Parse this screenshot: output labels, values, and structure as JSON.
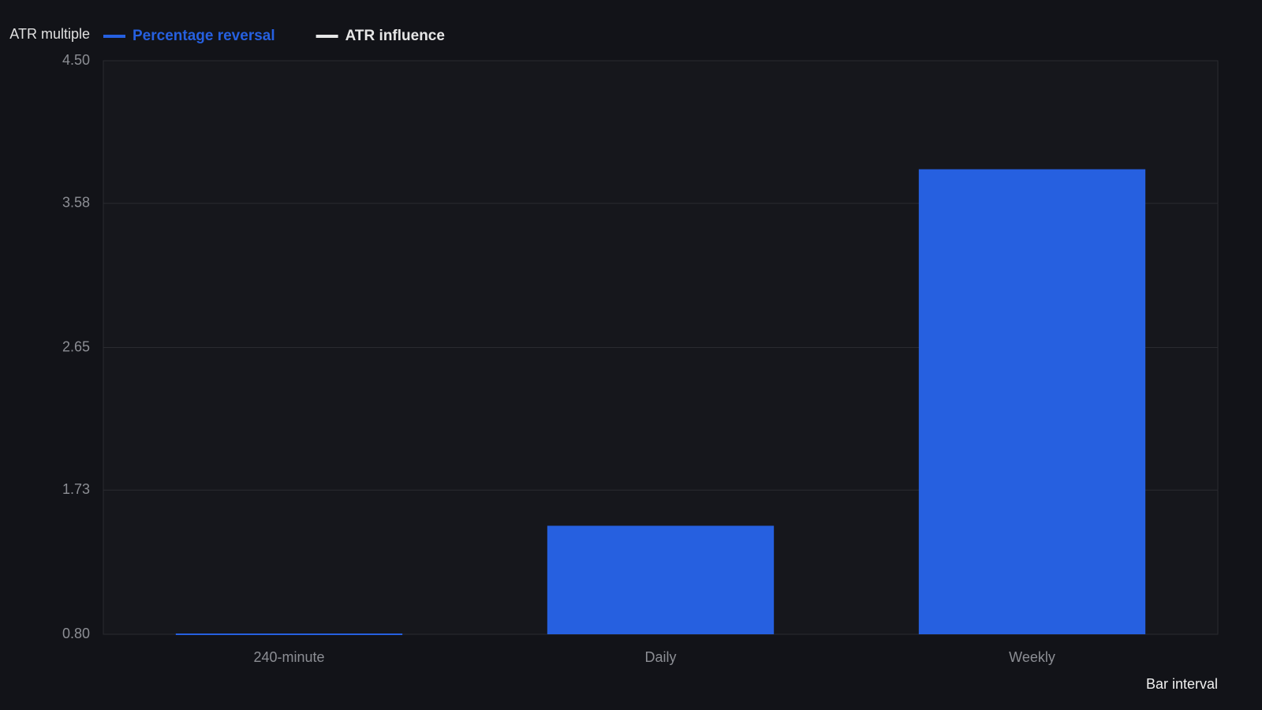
{
  "chart_data": {
    "type": "bar",
    "y_label": "ATR multiple",
    "x_label": "Bar interval",
    "categories": [
      "240-minute",
      "Daily",
      "Weekly"
    ],
    "series": [
      {
        "name": "Percentage reversal",
        "color": "#2660e0",
        "values": [
          0.8,
          1.5,
          3.8
        ]
      },
      {
        "name": "ATR influence",
        "color": "#e6e6e6",
        "values": [
          null,
          null,
          null
        ]
      }
    ],
    "ylim": [
      0.8,
      4.5
    ],
    "yticks": [
      {
        "value": 0.8,
        "label": "0.80"
      },
      1.73,
      2.65,
      3.58,
      {
        "value": 4.5,
        "label": "4.50"
      }
    ],
    "grid": true
  }
}
